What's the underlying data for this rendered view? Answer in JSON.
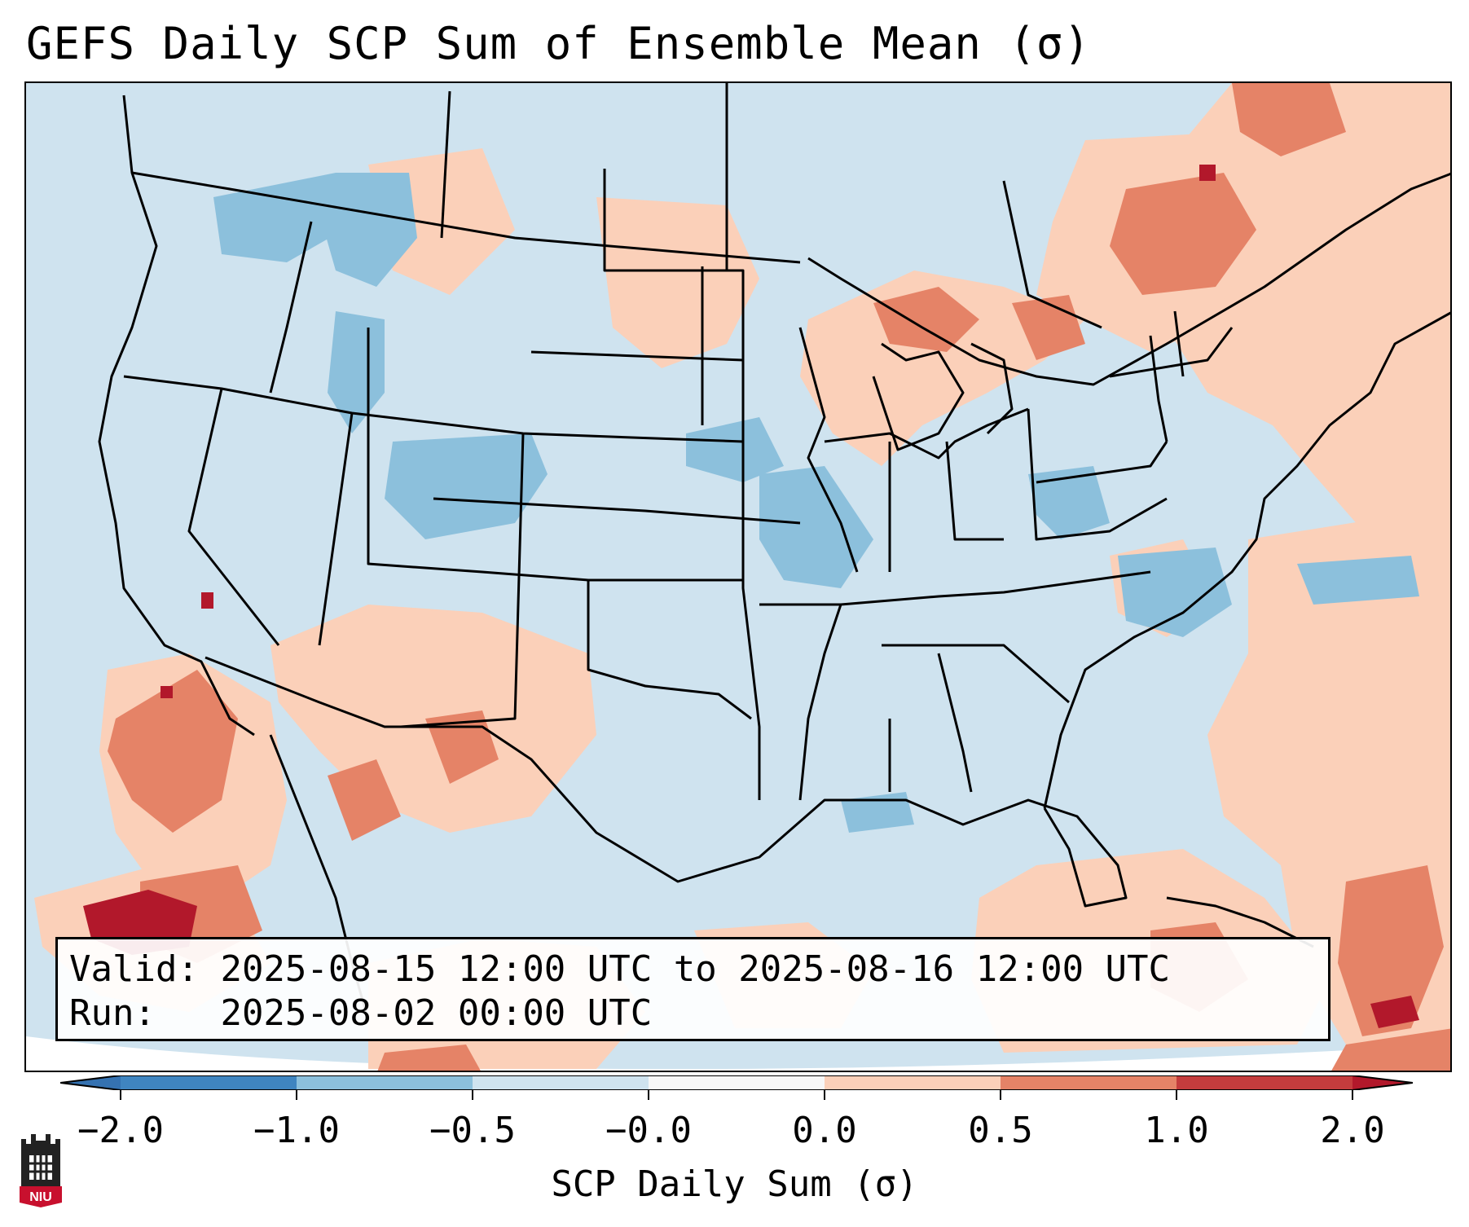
{
  "title": "GEFS Daily SCP Sum of Ensemble Mean (σ)",
  "info": {
    "valid_label": "Valid:",
    "valid_value": "2025-08-15 12:00 UTC to 2025-08-16 12:00 UTC",
    "run_label": "Run:  ",
    "run_value": "2025-08-02 00:00 UTC"
  },
  "colorbar": {
    "title": "SCP Daily Sum (σ)",
    "ticks": [
      "−2.0",
      "−1.0",
      "−0.5",
      "−0.0",
      "0.0",
      "0.5",
      "1.0",
      "2.0"
    ],
    "bin_colors": [
      "#3f85c0",
      "#8cc0dc",
      "#cfe3ef",
      "#f7f7f7",
      "#fbd0b9",
      "#e58367",
      "#c43c3d"
    ],
    "extend_low_color": "#3572b1",
    "extend_high_color": "#b2182b"
  },
  "logo": {
    "text": "NIU",
    "icon": "niu-castle-icon"
  },
  "colors": {
    "ocean": "#cfe3ef",
    "land": "#cfe3ef",
    "border": "#000000"
  }
}
